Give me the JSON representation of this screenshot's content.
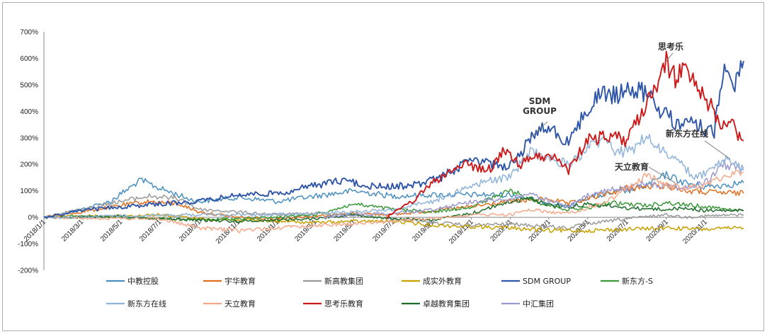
{
  "chart_data": {
    "type": "line",
    "title": "",
    "xlabel": "",
    "ylabel": "",
    "ylim": [
      -200,
      700
    ],
    "y_ticks": [
      "700%",
      "600%",
      "500%",
      "400%",
      "300%",
      "200%",
      "100%",
      "0%",
      "-100%",
      "-200%"
    ],
    "x_ticks": [
      "2018/1/1",
      "2018/3/1",
      "2018/5/1",
      "2018/7/1",
      "2018/9/1",
      "2018/11/1",
      "2019/1/1",
      "2019/3/1",
      "2019/5/1",
      "2019/7/1",
      "2019/9/1",
      "2019/11/1",
      "2020/1/1",
      "2020/3/1",
      "2020/5/1",
      "2020/7/1",
      "2020/9/1",
      "2020/11/1"
    ],
    "x_range": [
      "2018/1/1",
      "2020/12/31"
    ],
    "grid": false,
    "legend_position": "bottom",
    "series": [
      {
        "name": "中教控股",
        "color": "#4a8fbf",
        "points": [
          [
            "2018/1/1",
            0
          ],
          [
            "2018/3/1",
            30
          ],
          [
            "2018/4/15",
            60
          ],
          [
            "2018/6/1",
            140
          ],
          [
            "2018/7/1",
            110
          ],
          [
            "2018/8/15",
            70
          ],
          [
            "2018/9/1",
            60
          ],
          [
            "2018/11/1",
            75
          ],
          [
            "2019/1/1",
            60
          ],
          [
            "2019/3/1",
            80
          ],
          [
            "2019/5/1",
            100
          ],
          [
            "2019/7/1",
            80
          ],
          [
            "2019/9/1",
            85
          ],
          [
            "2019/11/1",
            85
          ],
          [
            "2020/1/1",
            85
          ],
          [
            "2020/3/1",
            55
          ],
          [
            "2020/4/1",
            40
          ],
          [
            "2020/5/1",
            75
          ],
          [
            "2020/7/1",
            100
          ],
          [
            "2020/8/1",
            120
          ],
          [
            "2020/9/1",
            160
          ],
          [
            "2020/10/1",
            130
          ],
          [
            "2020/11/1",
            115
          ],
          [
            "2020/12/31",
            130
          ]
        ]
      },
      {
        "name": "宇华教育",
        "color": "#e07020",
        "points": [
          [
            "2018/1/1",
            0
          ],
          [
            "2018/3/1",
            20
          ],
          [
            "2018/5/1",
            45
          ],
          [
            "2018/6/15",
            60
          ],
          [
            "2018/8/1",
            50
          ],
          [
            "2018/9/1",
            20
          ],
          [
            "2018/11/1",
            0
          ],
          [
            "2019/1/1",
            -5
          ],
          [
            "2019/3/1",
            5
          ],
          [
            "2019/5/1",
            15
          ],
          [
            "2019/7/1",
            10
          ],
          [
            "2019/9/1",
            25
          ],
          [
            "2019/11/1",
            40
          ],
          [
            "2020/1/1",
            60
          ],
          [
            "2020/3/1",
            70
          ],
          [
            "2020/4/1",
            50
          ],
          [
            "2020/6/1",
            90
          ],
          [
            "2020/7/1",
            110
          ],
          [
            "2020/9/1",
            120
          ],
          [
            "2020/10/1",
            100
          ],
          [
            "2020/11/1",
            95
          ],
          [
            "2020/12/31",
            90
          ]
        ]
      },
      {
        "name": "新高教集团",
        "color": "#999999",
        "points": [
          [
            "2018/1/1",
            0
          ],
          [
            "2018/3/1",
            30
          ],
          [
            "2018/5/1",
            60
          ],
          [
            "2018/6/15",
            80
          ],
          [
            "2018/8/1",
            70
          ],
          [
            "2018/9/1",
            30
          ],
          [
            "2018/11/1",
            20
          ],
          [
            "2019/1/1",
            10
          ],
          [
            "2019/3/1",
            15
          ],
          [
            "2019/5/1",
            10
          ],
          [
            "2019/7/1",
            -5
          ],
          [
            "2019/9/1",
            -20
          ],
          [
            "2019/11/1",
            -30
          ],
          [
            "2020/1/1",
            -25
          ],
          [
            "2020/2/1",
            -30
          ],
          [
            "2020/4/1",
            -40
          ],
          [
            "2020/5/1",
            -25
          ],
          [
            "2020/7/1",
            -5
          ],
          [
            "2020/9/1",
            10
          ],
          [
            "2020/10/1",
            0
          ],
          [
            "2020/11/1",
            5
          ],
          [
            "2020/12/31",
            10
          ]
        ]
      },
      {
        "name": "成实外教育",
        "color": "#c8a000",
        "points": [
          [
            "2018/1/1",
            0
          ],
          [
            "2018/3/1",
            5
          ],
          [
            "2018/5/1",
            5
          ],
          [
            "2018/7/1",
            10
          ],
          [
            "2018/9/1",
            -5
          ],
          [
            "2018/11/1",
            -10
          ],
          [
            "2019/1/1",
            -15
          ],
          [
            "2019/3/1",
            -20
          ],
          [
            "2019/5/1",
            -15
          ],
          [
            "2019/7/1",
            -15
          ],
          [
            "2019/9/1",
            -30
          ],
          [
            "2019/11/1",
            -35
          ],
          [
            "2020/1/1",
            -40
          ],
          [
            "2020/3/1",
            -50
          ],
          [
            "2020/5/1",
            -50
          ],
          [
            "2020/7/1",
            -45
          ],
          [
            "2020/9/1",
            -40
          ],
          [
            "2020/11/1",
            -45
          ],
          [
            "2020/12/31",
            -40
          ]
        ]
      },
      {
        "name": "SDM GROUP",
        "color": "#2f55a8",
        "points": [
          [
            "2018/1/1",
            0
          ],
          [
            "2018/3/1",
            25
          ],
          [
            "2018/5/1",
            40
          ],
          [
            "2018/7/1",
            50
          ],
          [
            "2018/9/1",
            60
          ],
          [
            "2018/11/1",
            85
          ],
          [
            "2019/1/1",
            90
          ],
          [
            "2019/3/1",
            120
          ],
          [
            "2019/4/15",
            140
          ],
          [
            "2019/6/1",
            115
          ],
          [
            "2019/8/1",
            120
          ],
          [
            "2019/9/15",
            150
          ],
          [
            "2019/11/1",
            220
          ],
          [
            "2019/12/1",
            200
          ],
          [
            "2020/1/1",
            195
          ],
          [
            "2020/1/20",
            250
          ],
          [
            "2020/2/15",
            340
          ],
          [
            "2020/3/15",
            320
          ],
          [
            "2020/4/1",
            280
          ],
          [
            "2020/5/1",
            410
          ],
          [
            "2020/5/20",
            470
          ],
          [
            "2020/6/15",
            460
          ],
          [
            "2020/7/15",
            480
          ],
          [
            "2020/8/1",
            470
          ],
          [
            "2020/8/20",
            410
          ],
          [
            "2020/9/15",
            360
          ],
          [
            "2020/10/15",
            350
          ],
          [
            "2020/11/15",
            320
          ],
          [
            "2020/12/1",
            560
          ],
          [
            "2020/12/15",
            500
          ],
          [
            "2020/12/31",
            590
          ]
        ]
      },
      {
        "name": "新东方-S",
        "color": "#3a9a3a",
        "points": [
          [
            "2018/1/1",
            0
          ],
          [
            "2018/3/1",
            5
          ],
          [
            "2018/5/1",
            0
          ],
          [
            "2018/7/1",
            -5
          ],
          [
            "2018/9/1",
            -10
          ],
          [
            "2018/11/1",
            -5
          ],
          [
            "2019/1/1",
            0
          ],
          [
            "2019/3/1",
            10
          ],
          [
            "2019/5/1",
            50
          ],
          [
            "2019/7/1",
            30
          ],
          [
            "2019/9/1",
            20
          ],
          [
            "2019/11/1",
            40
          ],
          [
            "2020/1/1",
            100
          ],
          [
            "2020/2/1",
            70
          ],
          [
            "2020/3/1",
            45
          ],
          [
            "2020/4/1",
            30
          ],
          [
            "2020/5/1",
            35
          ],
          [
            "2020/6/1",
            55
          ],
          [
            "2020/7/1",
            50
          ],
          [
            "2020/8/1",
            45
          ],
          [
            "2020/9/1",
            55
          ],
          [
            "2020/11/1",
            40
          ],
          [
            "2020/12/31",
            25
          ]
        ]
      },
      {
        "name": "新东方在线",
        "color": "#8fb3d9",
        "points": [
          [
            "2018/1/1",
            0
          ],
          [
            "2018/5/1",
            5
          ],
          [
            "2018/9/1",
            10
          ],
          [
            "2019/1/1",
            10
          ],
          [
            "2019/3/1",
            15
          ],
          [
            "2019/5/1",
            20
          ],
          [
            "2019/7/1",
            30
          ],
          [
            "2019/9/1",
            60
          ],
          [
            "2019/11/1",
            120
          ],
          [
            "2019/12/1",
            140
          ],
          [
            "2020/1/1",
            150
          ],
          [
            "2020/2/1",
            250
          ],
          [
            "2020/3/1",
            220
          ],
          [
            "2020/4/1",
            200
          ],
          [
            "2020/5/1",
            260
          ],
          [
            "2020/6/1",
            300
          ],
          [
            "2020/6/15",
            240
          ],
          [
            "2020/7/15",
            260
          ],
          [
            "2020/8/1",
            310
          ],
          [
            "2020/8/20",
            260
          ],
          [
            "2020/9/15",
            220
          ],
          [
            "2020/10/15",
            150
          ],
          [
            "2020/11/15",
            180
          ],
          [
            "2020/12/1",
            220
          ],
          [
            "2020/12/31",
            180
          ]
        ]
      },
      {
        "name": "天立教育",
        "color": "#f5a98a",
        "points": [
          [
            "2018/1/1",
            0
          ],
          [
            "2018/5/1",
            -5
          ],
          [
            "2018/7/1",
            -5
          ],
          [
            "2018/9/1",
            -40
          ],
          [
            "2018/11/1",
            -50
          ],
          [
            "2019/1/1",
            -40
          ],
          [
            "2019/3/1",
            -30
          ],
          [
            "2019/5/1",
            -25
          ],
          [
            "2019/7/1",
            -15
          ],
          [
            "2019/9/1",
            -5
          ],
          [
            "2019/11/1",
            10
          ],
          [
            "2020/1/1",
            10
          ],
          [
            "2020/2/1",
            30
          ],
          [
            "2020/3/1",
            20
          ],
          [
            "2020/4/1",
            15
          ],
          [
            "2020/5/1",
            35
          ],
          [
            "2020/6/1",
            60
          ],
          [
            "2020/7/1",
            110
          ],
          [
            "2020/8/1",
            160
          ],
          [
            "2020/9/1",
            120
          ],
          [
            "2020/10/1",
            110
          ],
          [
            "2020/11/1",
            120
          ],
          [
            "2020/12/1",
            160
          ],
          [
            "2020/12/31",
            170
          ]
        ]
      },
      {
        "name": "思考乐教育",
        "color": "#cc1a1a",
        "points": [
          [
            "2019/6/21",
            0
          ],
          [
            "2019/8/1",
            60
          ],
          [
            "2019/9/1",
            130
          ],
          [
            "2019/10/15",
            200
          ],
          [
            "2019/12/1",
            180
          ],
          [
            "2019/12/20",
            250
          ],
          [
            "2020/1/15",
            200
          ],
          [
            "2020/2/15",
            230
          ],
          [
            "2020/3/15",
            220
          ],
          [
            "2020/4/1",
            180
          ],
          [
            "2020/5/1",
            290
          ],
          [
            "2020/6/1",
            310
          ],
          [
            "2020/7/1",
            290
          ],
          [
            "2020/7/20",
            380
          ],
          [
            "2020/8/15",
            480
          ],
          [
            "2020/9/1",
            590
          ],
          [
            "2020/9/15",
            520
          ],
          [
            "2020/10/1",
            570
          ],
          [
            "2020/10/20",
            500
          ],
          [
            "2020/11/10",
            420
          ],
          [
            "2020/11/25",
            350
          ],
          [
            "2020/12/10",
            380
          ],
          [
            "2020/12/20",
            300
          ],
          [
            "2020/12/31",
            290
          ]
        ]
      },
      {
        "name": "卓越教育集团",
        "color": "#1f6b2a",
        "points": [
          [
            "2018/1/1",
            0
          ],
          [
            "2018/3/1",
            0
          ],
          [
            "2018/5/1",
            5
          ],
          [
            "2018/7/1",
            -5
          ],
          [
            "2018/9/1",
            -10
          ],
          [
            "2018/11/1",
            -15
          ],
          [
            "2019/1/1",
            -10
          ],
          [
            "2019/3/1",
            -5
          ],
          [
            "2019/5/1",
            10
          ],
          [
            "2019/7/1",
            -5
          ],
          [
            "2019/9/1",
            -10
          ],
          [
            "2019/11/1",
            15
          ],
          [
            "2020/1/1",
            60
          ],
          [
            "2020/2/1",
            70
          ],
          [
            "2020/3/1",
            50
          ],
          [
            "2020/4/1",
            40
          ],
          [
            "2020/5/1",
            50
          ],
          [
            "2020/7/1",
            35
          ],
          [
            "2020/9/1",
            30
          ],
          [
            "2020/10/1",
            35
          ],
          [
            "2020/11/1",
            25
          ],
          [
            "2020/12/31",
            25
          ]
        ]
      },
      {
        "name": "中汇集团",
        "color": "#9a9ad0",
        "points": [
          [
            "2019/3/15",
            0
          ],
          [
            "2019/5/1",
            10
          ],
          [
            "2019/7/1",
            15
          ],
          [
            "2019/9/1",
            30
          ],
          [
            "2019/11/1",
            60
          ],
          [
            "2020/1/1",
            70
          ],
          [
            "2020/2/1",
            90
          ],
          [
            "2020/3/1",
            60
          ],
          [
            "2020/4/1",
            40
          ],
          [
            "2020/5/1",
            80
          ],
          [
            "2020/6/1",
            100
          ],
          [
            "2020/7/1",
            110
          ],
          [
            "2020/8/1",
            130
          ],
          [
            "2020/9/1",
            120
          ],
          [
            "2020/10/1",
            110
          ],
          [
            "2020/11/1",
            130
          ],
          [
            "2020/12/1",
            200
          ],
          [
            "2020/12/31",
            180
          ]
        ]
      }
    ],
    "annotations": [
      {
        "text_lines": [
          "思考乐"
        ],
        "target": [
          "2020/9/1",
          590
        ]
      },
      {
        "text_lines": [
          "SDM",
          "GROUP"
        ],
        "target": [
          "2020/2/1",
          300
        ]
      },
      {
        "text_lines": [
          "新东方在线"
        ],
        "target": [
          "2020/12/10",
          220
        ]
      },
      {
        "text_lines": [
          "天立教育"
        ],
        "target": [
          "2020/9/15",
          130
        ]
      }
    ]
  }
}
